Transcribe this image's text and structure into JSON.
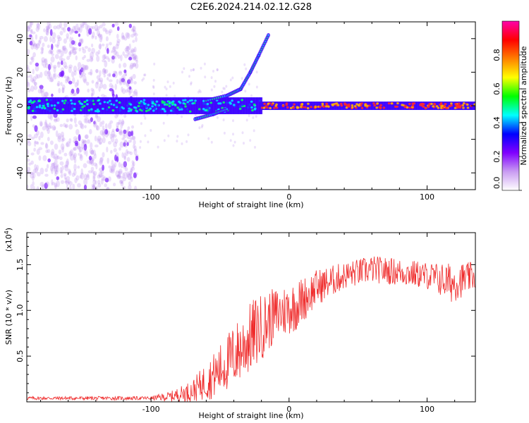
{
  "title": "C2E6.2024.214.02.12.G28",
  "chart_data": [
    {
      "type": "heatmap",
      "xlabel": "Height of straight line (km)",
      "ylabel": "Frequency (Hz)",
      "xlim": [
        -190,
        135
      ],
      "ylim": [
        -50,
        50
      ],
      "x_ticks": [
        -100,
        0,
        100
      ],
      "y_ticks": [
        -40,
        -20,
        0,
        20,
        40
      ],
      "colorbar": {
        "label": "Normalized spectral amplitude",
        "range": [
          0,
          1
        ],
        "ticks": [
          "0.0",
          "0.2",
          "0.4",
          "0.6",
          "0.8"
        ],
        "colormap": [
          "#ffffff",
          "#c99cf2",
          "#8000ff",
          "#0000ff",
          "#00ffff",
          "#00ff00",
          "#ffff00",
          "#ff8000",
          "#ff0000",
          "#ff00aa"
        ]
      },
      "ridge": {
        "noisy_region_x": [
          -190,
          -110
        ],
        "transition_x": [
          -110,
          -20
        ],
        "stable_region_x": [
          -20,
          135
        ],
        "center_frequency": 0,
        "secondary_branch": [
          {
            "x": -60,
            "y": 3
          },
          {
            "x": -45,
            "y": 6
          },
          {
            "x": -35,
            "y": 10
          },
          {
            "x": -28,
            "y": 20
          },
          {
            "x": -22,
            "y": 30
          },
          {
            "x": -15,
            "y": 42
          }
        ],
        "lower_branch": [
          {
            "x": -68,
            "y": -8
          },
          {
            "x": -55,
            "y": -5
          },
          {
            "x": -45,
            "y": -2
          }
        ]
      }
    },
    {
      "type": "line",
      "xlabel": "Height of straight line (km)",
      "ylabel": "SNR (10 * v/v)",
      "y_multiplier": "(x10",
      "y_multiplier_exp": "4",
      "y_multiplier_close": ")",
      "xlim": [
        -190,
        135
      ],
      "ylim": [
        0,
        1.85
      ],
      "x_ticks": [
        -100,
        0,
        100
      ],
      "y_ticks": [
        "0.5",
        "1.0",
        "1.5"
      ],
      "color": "#ef2b2b",
      "envelope": [
        {
          "x": -190,
          "y": 0.04,
          "spread": 0.02
        },
        {
          "x": -100,
          "y": 0.04,
          "spread": 0.02
        },
        {
          "x": -85,
          "y": 0.06,
          "spread": 0.06
        },
        {
          "x": -70,
          "y": 0.12,
          "spread": 0.12
        },
        {
          "x": -55,
          "y": 0.28,
          "spread": 0.25
        },
        {
          "x": -40,
          "y": 0.5,
          "spread": 0.35
        },
        {
          "x": -25,
          "y": 0.75,
          "spread": 0.4
        },
        {
          "x": -10,
          "y": 0.95,
          "spread": 0.3
        },
        {
          "x": 5,
          "y": 1.05,
          "spread": 0.28
        },
        {
          "x": 20,
          "y": 1.25,
          "spread": 0.2
        },
        {
          "x": 40,
          "y": 1.38,
          "spread": 0.15
        },
        {
          "x": 60,
          "y": 1.45,
          "spread": 0.15
        },
        {
          "x": 80,
          "y": 1.42,
          "spread": 0.15
        },
        {
          "x": 100,
          "y": 1.38,
          "spread": 0.15
        },
        {
          "x": 118,
          "y": 1.3,
          "spread": 0.22
        },
        {
          "x": 135,
          "y": 1.38,
          "spread": 0.15
        }
      ]
    }
  ]
}
